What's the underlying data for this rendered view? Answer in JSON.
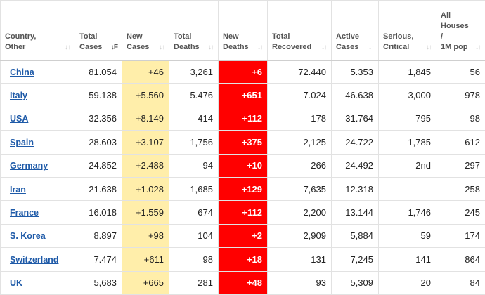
{
  "columns": [
    {
      "label": "Country,\nOther",
      "sort": "inactive"
    },
    {
      "label": "Total\nCases",
      "sort": "active"
    },
    {
      "label": "New\nCases",
      "sort": "inactive"
    },
    {
      "label": "Total\nDeaths",
      "sort": "inactive"
    },
    {
      "label": "New\nDeaths",
      "sort": "inactive"
    },
    {
      "label": "Total\nRecovered",
      "sort": "inactive"
    },
    {
      "label": "Active\nCases",
      "sort": "inactive"
    },
    {
      "label": "Serious,\nCritical",
      "sort": "inactive"
    },
    {
      "label": "All\nHouses\n/\n1M pop",
      "sort": "inactive"
    }
  ],
  "sort_glyphs": {
    "inactive": "↓↑",
    "active": "↓F"
  },
  "rows": [
    {
      "country": "China",
      "total_cases": "81.054",
      "new_cases": "+46",
      "total_deaths": "3,261",
      "new_deaths": "+6",
      "total_recovered": "72.440",
      "active_cases": "5.353",
      "serious_critical": "1,845",
      "per_million": "56"
    },
    {
      "country": "Italy",
      "total_cases": "59.138",
      "new_cases": "+5.560",
      "total_deaths": "5.476",
      "new_deaths": "+651",
      "total_recovered": "7.024",
      "active_cases": "46.638",
      "serious_critical": "3,000",
      "per_million": "978"
    },
    {
      "country": "USA",
      "total_cases": "32.356",
      "new_cases": "+8.149",
      "total_deaths": "414",
      "new_deaths": "+112",
      "total_recovered": "178",
      "active_cases": "31.764",
      "serious_critical": "795",
      "per_million": "98"
    },
    {
      "country": "Spain",
      "total_cases": "28.603",
      "new_cases": "+3.107",
      "total_deaths": "1,756",
      "new_deaths": "+375",
      "total_recovered": "2,125",
      "active_cases": "24.722",
      "serious_critical": "1,785",
      "per_million": "612"
    },
    {
      "country": "Germany",
      "total_cases": "24.852",
      "new_cases": "+2.488",
      "total_deaths": "94",
      "new_deaths": "+10",
      "total_recovered": "266",
      "active_cases": "24.492",
      "serious_critical": "2nd",
      "per_million": "297"
    },
    {
      "country": "Iran",
      "total_cases": "21.638",
      "new_cases": "+1.028",
      "total_deaths": "1,685",
      "new_deaths": "+129",
      "total_recovered": "7,635",
      "active_cases": "12.318",
      "serious_critical": "",
      "per_million": "258"
    },
    {
      "country": "France",
      "total_cases": "16.018",
      "new_cases": "+1.559",
      "total_deaths": "674",
      "new_deaths": "+112",
      "total_recovered": "2,200",
      "active_cases": "13.144",
      "serious_critical": "1,746",
      "per_million": "245"
    },
    {
      "country": "S. Korea",
      "total_cases": "8.897",
      "new_cases": "+98",
      "total_deaths": "104",
      "new_deaths": "+2",
      "total_recovered": "2,909",
      "active_cases": "5,884",
      "serious_critical": "59",
      "per_million": "174"
    },
    {
      "country": "Switzerland",
      "total_cases": "7.474",
      "new_cases": "+611",
      "total_deaths": "98",
      "new_deaths": "+18",
      "total_recovered": "131",
      "active_cases": "7,245",
      "serious_critical": "141",
      "per_million": "864"
    },
    {
      "country": "UK",
      "total_cases": "5,683",
      "new_cases": "+665",
      "total_deaths": "281",
      "new_deaths": "+48",
      "total_recovered": "93",
      "active_cases": "5,309",
      "serious_critical": "20",
      "per_million": "84"
    }
  ],
  "colors": {
    "link": "#1e5aa8",
    "new_cases_bg": "#ffeeaa",
    "new_deaths_bg": "#ff0000",
    "new_deaths_text": "#ffffff",
    "border": "#e2e2e2"
  }
}
